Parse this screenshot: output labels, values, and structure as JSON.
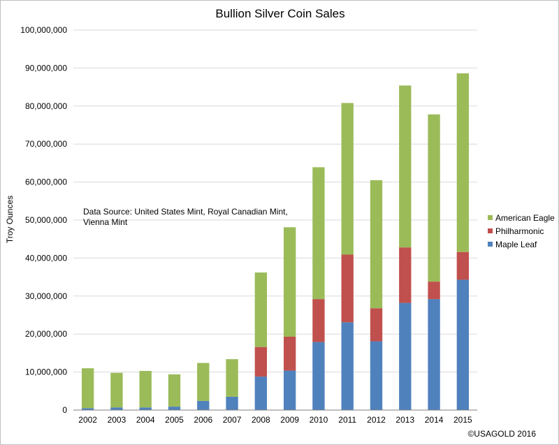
{
  "chart_data": {
    "type": "bar",
    "stacked": true,
    "title": "Bullion Silver Coin Sales",
    "xlabel": "",
    "ylabel": "Troy Ounces",
    "ylim": [
      0,
      100000000
    ],
    "y_tick_labels": [
      "0",
      "10,000,000",
      "20,000,000",
      "30,000,000",
      "40,000,000",
      "50,000,000",
      "60,000,000",
      "70,000,000",
      "80,000,000",
      "90,000,000",
      "100,000,000"
    ],
    "grid": true,
    "legend_position": "right",
    "categories": [
      "2002",
      "2003",
      "2004",
      "2005",
      "2006",
      "2007",
      "2008",
      "2009",
      "2010",
      "2011",
      "2012",
      "2013",
      "2014",
      "2015"
    ],
    "series": [
      {
        "name": "Maple Leaf",
        "color": "#4f81bd",
        "values": [
          500000,
          700000,
          700000,
          900000,
          2400000,
          3500000,
          8800000,
          10400000,
          17900000,
          23100000,
          18100000,
          28200000,
          29200000,
          34300000
        ]
      },
      {
        "name": "Philharmonic",
        "color": "#c0504d",
        "values": [
          0,
          0,
          0,
          0,
          0,
          0,
          7800000,
          8900000,
          11300000,
          17800000,
          8700000,
          14600000,
          4600000,
          7300000
        ]
      },
      {
        "name": "American Eagle",
        "color": "#9bbb59",
        "values": [
          10500000,
          9100000,
          9600000,
          8500000,
          10000000,
          9900000,
          19600000,
          28800000,
          34700000,
          39900000,
          33700000,
          42600000,
          44000000,
          47000000
        ]
      }
    ],
    "annotations": [
      "Data Source: United States Mint, Royal Canadian Mint,",
      "Vienna Mint"
    ],
    "footer": "©USAGOLD 2016"
  }
}
